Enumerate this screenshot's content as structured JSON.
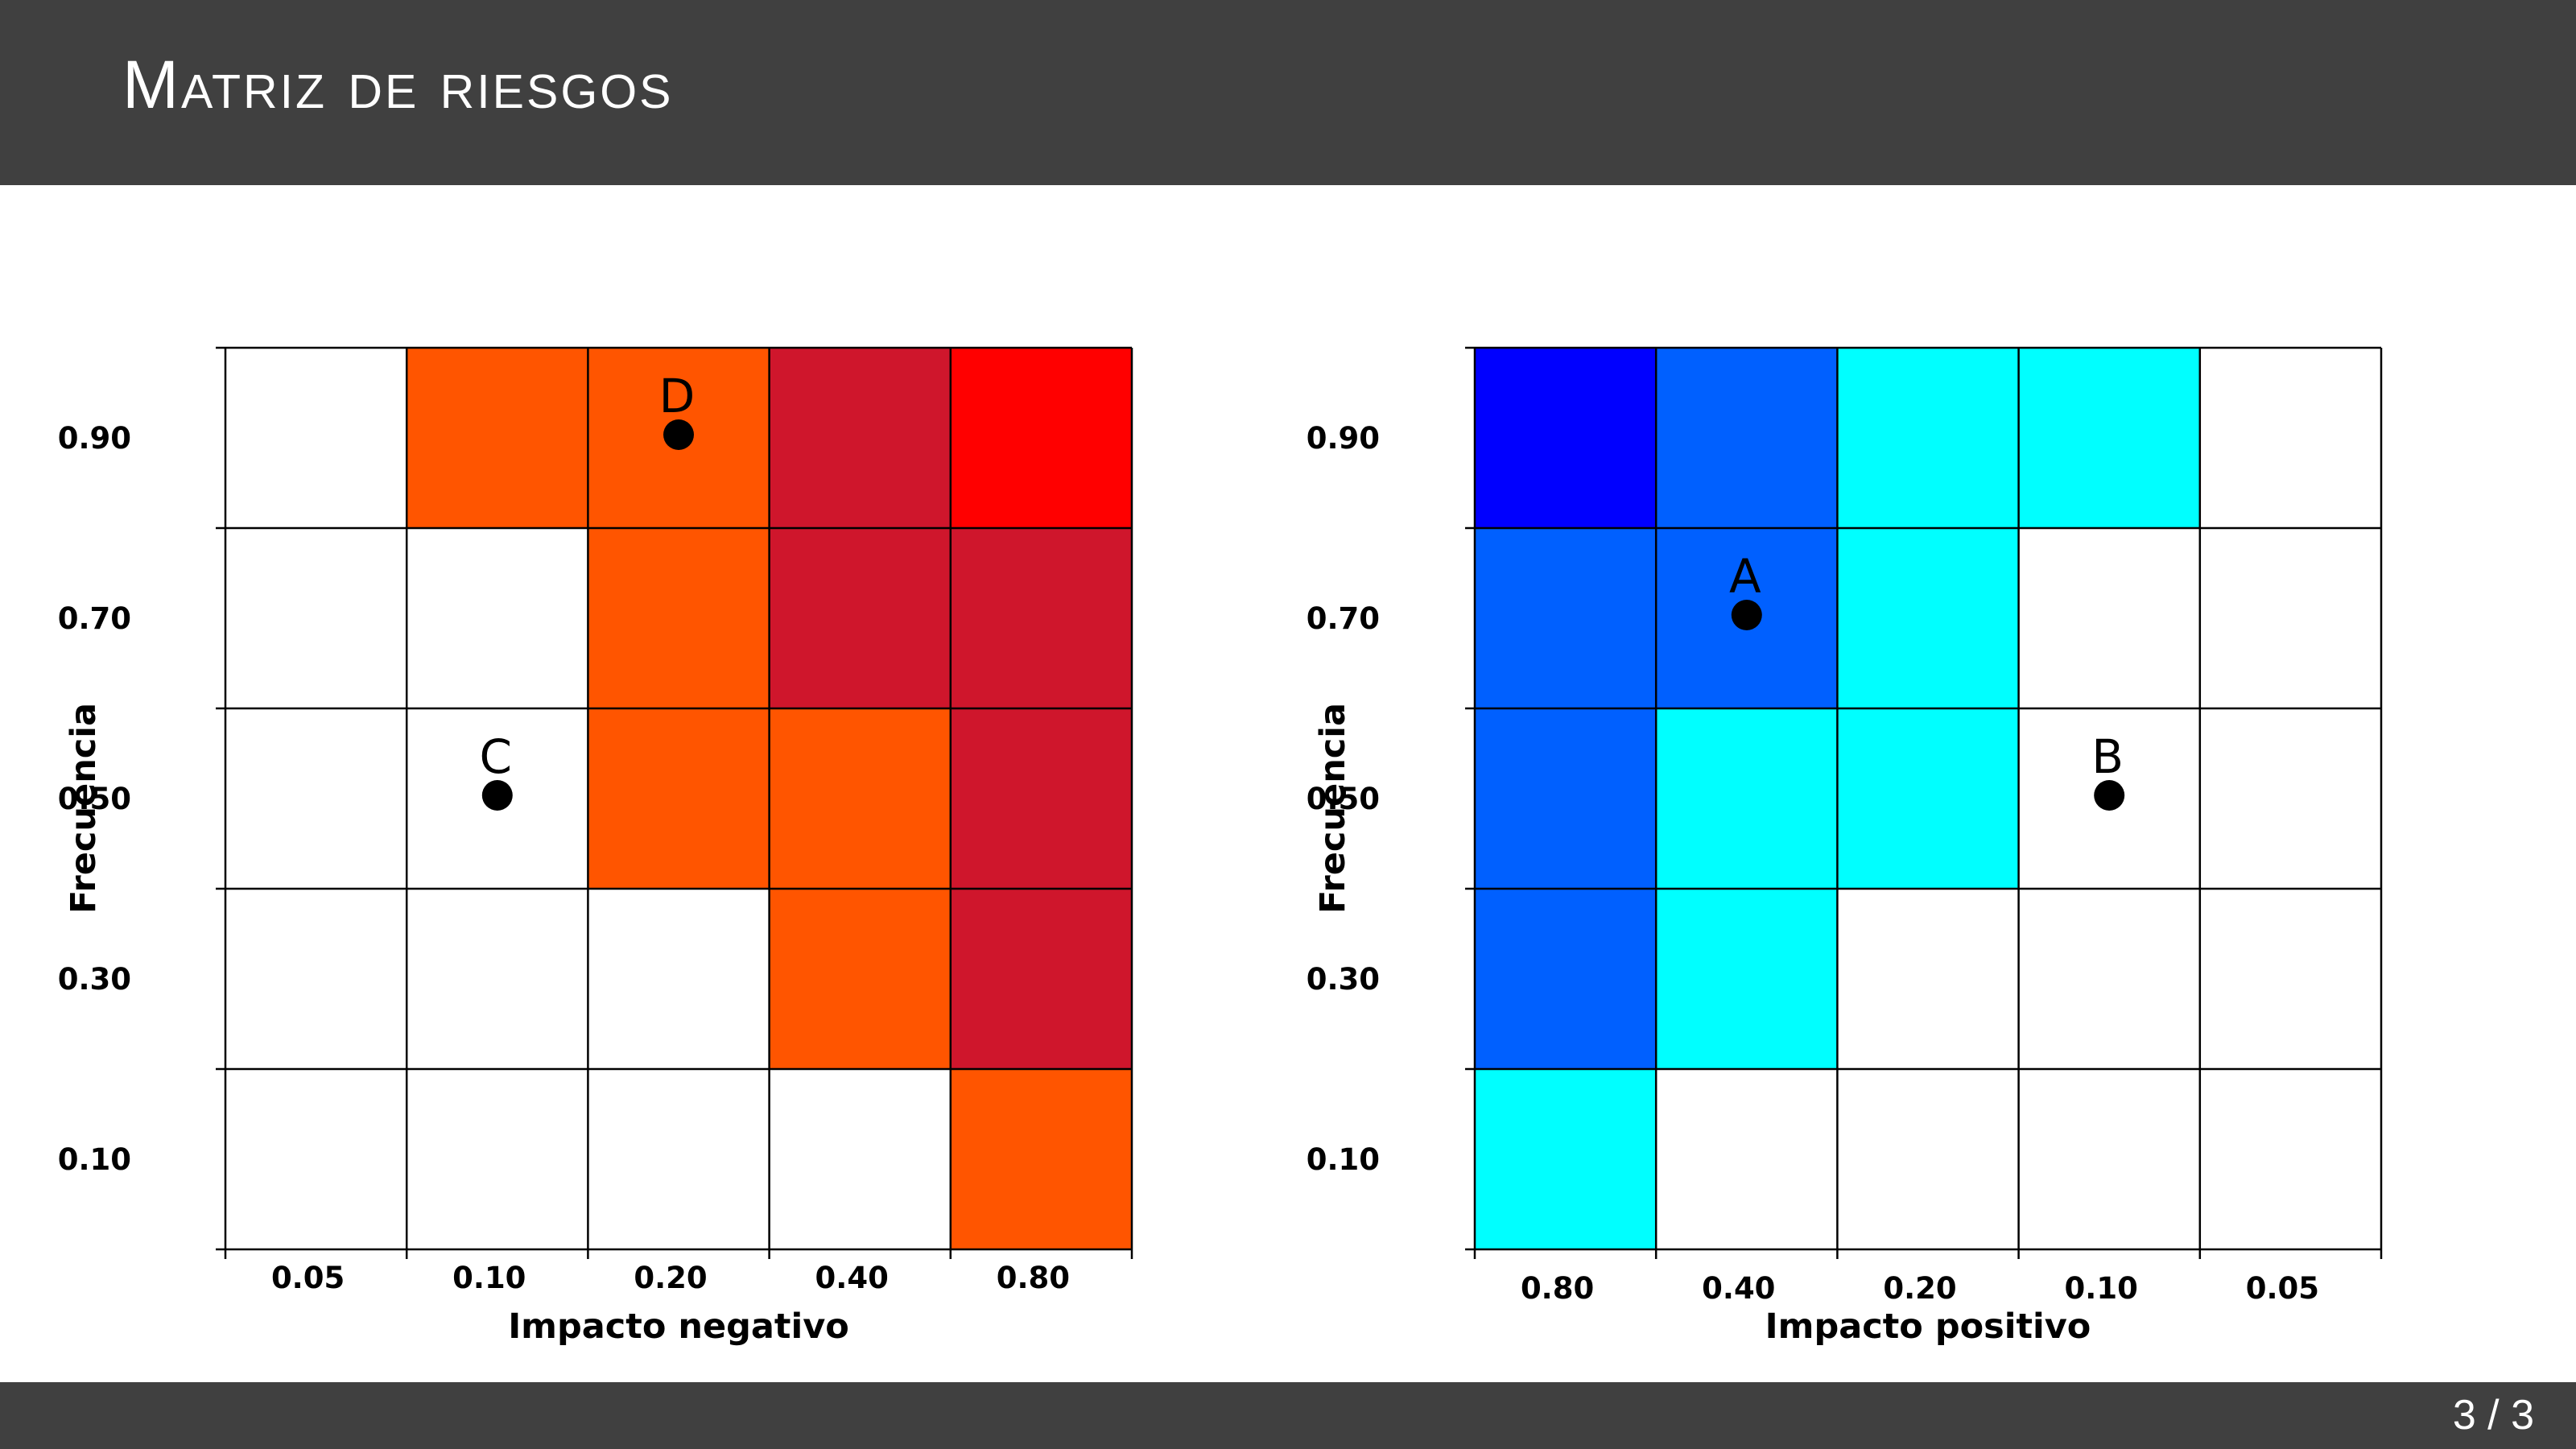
{
  "slide": {
    "title": "Matriz de riesgos",
    "page": "3 / 3"
  },
  "colors": {
    "header_bg": "#404040",
    "neg_low": "#ff5500",
    "neg_mid": "#cf162c",
    "neg_high": "#ff0000",
    "pos_low": "#00ffff",
    "pos_mid": "#0060ff",
    "pos_high": "#0000ff",
    "empty": "#ffffff"
  },
  "chart_data": [
    {
      "type": "heatmap",
      "xlabel": "Impacto negativo",
      "ylabel": "Frecuencia",
      "x_ticks": [
        "0.05",
        "0.10",
        "0.20",
        "0.40",
        "0.80"
      ],
      "y_ticks": [
        "0.10",
        "0.30",
        "0.50",
        "0.70",
        "0.90"
      ],
      "grid": true,
      "cells_top_to_bottom": [
        [
          "empty",
          "neg_low",
          "neg_low",
          "neg_mid",
          "neg_high"
        ],
        [
          "empty",
          "empty",
          "neg_low",
          "neg_mid",
          "neg_mid"
        ],
        [
          "empty",
          "empty",
          "neg_low",
          "neg_low",
          "neg_mid"
        ],
        [
          "empty",
          "empty",
          "empty",
          "neg_low",
          "neg_mid"
        ],
        [
          "empty",
          "empty",
          "empty",
          "empty",
          "neg_low"
        ]
      ],
      "points": [
        {
          "label": "D",
          "impact": "0.20",
          "frequency": 0.9
        },
        {
          "label": "C",
          "impact": "0.10",
          "frequency": 0.5
        }
      ]
    },
    {
      "type": "heatmap",
      "xlabel": "Impacto positivo",
      "ylabel": "Frecuencia",
      "x_ticks": [
        "0.80",
        "0.40",
        "0.20",
        "0.10",
        "0.05"
      ],
      "y_ticks": [
        "0.10",
        "0.30",
        "0.50",
        "0.70",
        "0.90"
      ],
      "grid": true,
      "cells_top_to_bottom": [
        [
          "pos_high",
          "pos_mid",
          "pos_low",
          "pos_low",
          "empty"
        ],
        [
          "pos_mid",
          "pos_mid",
          "pos_low",
          "empty",
          "empty"
        ],
        [
          "pos_mid",
          "pos_low",
          "pos_low",
          "empty",
          "empty"
        ],
        [
          "pos_mid",
          "pos_low",
          "empty",
          "empty",
          "empty"
        ],
        [
          "pos_low",
          "empty",
          "empty",
          "empty",
          "empty"
        ]
      ],
      "points": [
        {
          "label": "A",
          "impact": "0.40",
          "frequency": 0.7
        },
        {
          "label": "B",
          "impact": "0.10",
          "frequency": 0.5
        }
      ]
    }
  ]
}
